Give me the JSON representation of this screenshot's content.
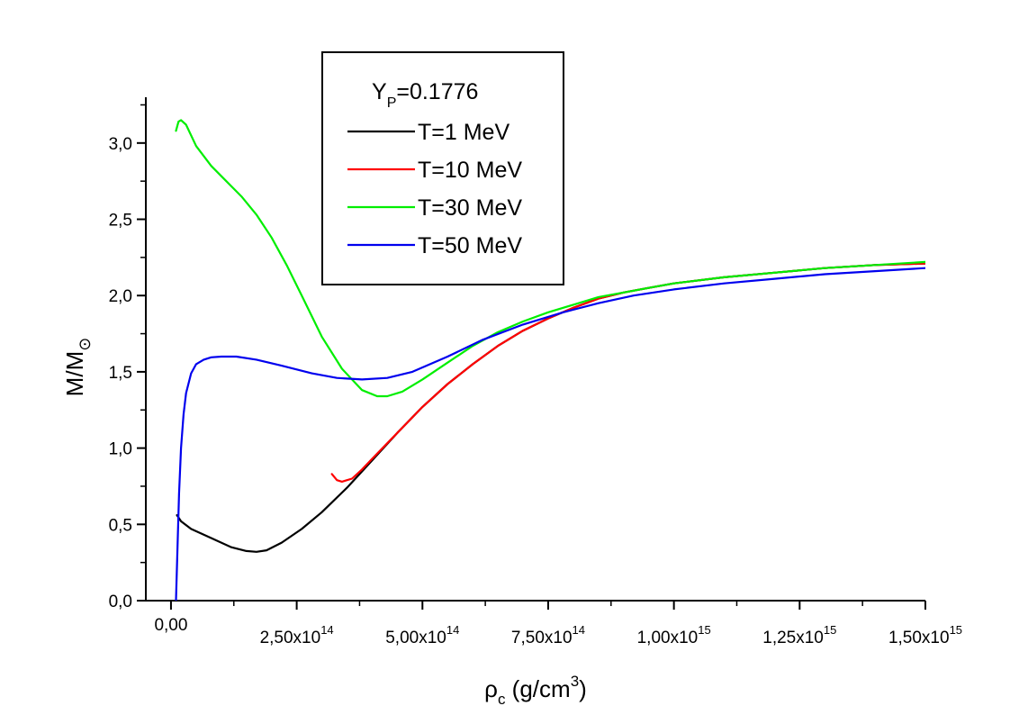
{
  "chart_data": {
    "type": "line",
    "title": "",
    "xlabel": {
      "main": "ρ",
      "sub": "c",
      "unit_prefix": " (g/cm",
      "sup": "3",
      "unit_suffix": ")"
    },
    "ylabel": {
      "main": "M/M",
      "sub": "⊙"
    },
    "xlim": [
      -50000000000000.0,
      1500000000000000.0
    ],
    "ylim": [
      0,
      3.3
    ],
    "x_ticks": [
      {
        "value": 0,
        "mantissa": "0,00",
        "exponent": ""
      },
      {
        "value": 250000000000000.0,
        "mantissa": "2,50x10",
        "exponent": "14"
      },
      {
        "value": 500000000000000.0,
        "mantissa": "5,00x10",
        "exponent": "14"
      },
      {
        "value": 750000000000000.0,
        "mantissa": "7,50x10",
        "exponent": "14"
      },
      {
        "value": 1000000000000000.0,
        "mantissa": "1,00x10",
        "exponent": "15"
      },
      {
        "value": 1250000000000000.0,
        "mantissa": "1,25x10",
        "exponent": "15"
      },
      {
        "value": 1500000000000000.0,
        "mantissa": "1,50x10",
        "exponent": "15"
      }
    ],
    "y_ticks": [
      {
        "value": 0.0,
        "label": "0,0"
      },
      {
        "value": 0.5,
        "label": "0,5"
      },
      {
        "value": 1.0,
        "label": "1,0"
      },
      {
        "value": 1.5,
        "label": "1,5"
      },
      {
        "value": 2.0,
        "label": "2,0"
      },
      {
        "value": 2.5,
        "label": "2,5"
      },
      {
        "value": 3.0,
        "label": "3,0"
      }
    ],
    "legend": {
      "placement": "top-center",
      "title": {
        "main": "Y",
        "sub": "P",
        "suffix": "=0.1776"
      }
    },
    "series": [
      {
        "name": "T=1 MeV",
        "color": "#000000",
        "x": [
          12000000000000.0,
          20000000000000.0,
          40000000000000.0,
          80000000000000.0,
          120000000000000.0,
          150000000000000.0,
          170000000000000.0,
          190000000000000.0,
          220000000000000.0,
          260000000000000.0,
          300000000000000.0,
          350000000000000.0,
          400000000000000.0,
          450000000000000.0,
          500000000000000.0,
          550000000000000.0,
          600000000000000.0,
          650000000000000.0,
          700000000000000.0,
          750000000000000.0,
          800000000000000.0,
          850000000000000.0,
          900000000000000.0,
          950000000000000.0,
          1000000000000000.0,
          1100000000000000.0,
          1200000000000000.0,
          1300000000000000.0,
          1400000000000000.0,
          1500000000000000.0
        ],
        "y": [
          0.56,
          0.52,
          0.47,
          0.41,
          0.35,
          0.325,
          0.32,
          0.33,
          0.38,
          0.47,
          0.58,
          0.74,
          0.92,
          1.1,
          1.27,
          1.42,
          1.55,
          1.67,
          1.77,
          1.85,
          1.92,
          1.98,
          2.02,
          2.05,
          2.08,
          2.12,
          2.15,
          2.18,
          2.2,
          2.21
        ]
      },
      {
        "name": "T=10 MeV",
        "color": "#ff0000",
        "x": [
          320000000000000.0,
          330000000000000.0,
          340000000000000.0,
          360000000000000.0,
          380000000000000.0,
          400000000000000.0,
          450000000000000.0,
          500000000000000.0,
          550000000000000.0,
          600000000000000.0,
          650000000000000.0,
          700000000000000.0,
          750000000000000.0,
          800000000000000.0,
          850000000000000.0,
          900000000000000.0,
          950000000000000.0,
          1000000000000000.0,
          1100000000000000.0,
          1200000000000000.0,
          1300000000000000.0,
          1400000000000000.0,
          1500000000000000.0
        ],
        "y": [
          0.83,
          0.79,
          0.78,
          0.8,
          0.86,
          0.93,
          1.1,
          1.27,
          1.42,
          1.55,
          1.67,
          1.77,
          1.85,
          1.92,
          1.98,
          2.02,
          2.05,
          2.08,
          2.12,
          2.15,
          2.18,
          2.2,
          2.21
        ]
      },
      {
        "name": "T=30 MeV",
        "color": "#00ee00",
        "x": [
          10000000000000.0,
          15000000000000.0,
          20000000000000.0,
          30000000000000.0,
          50000000000000.0,
          80000000000000.0,
          110000000000000.0,
          140000000000000.0,
          170000000000000.0,
          200000000000000.0,
          230000000000000.0,
          260000000000000.0,
          300000000000000.0,
          340000000000000.0,
          380000000000000.0,
          410000000000000.0,
          430000000000000.0,
          460000000000000.0,
          500000000000000.0,
          550000000000000.0,
          600000000000000.0,
          650000000000000.0,
          700000000000000.0,
          750000000000000.0,
          800000000000000.0,
          850000000000000.0,
          900000000000000.0,
          950000000000000.0,
          1000000000000000.0,
          1100000000000000.0,
          1200000000000000.0,
          1300000000000000.0,
          1400000000000000.0,
          1500000000000000.0
        ],
        "y": [
          3.08,
          3.14,
          3.15,
          3.12,
          2.98,
          2.85,
          2.75,
          2.65,
          2.53,
          2.38,
          2.2,
          2.0,
          1.73,
          1.52,
          1.38,
          1.34,
          1.34,
          1.37,
          1.45,
          1.56,
          1.67,
          1.76,
          1.83,
          1.89,
          1.94,
          1.99,
          2.02,
          2.05,
          2.08,
          2.12,
          2.15,
          2.18,
          2.2,
          2.22
        ]
      },
      {
        "name": "T=50 MeV",
        "color": "#0000ee",
        "x": [
          10000000000000.0,
          13000000000000.0,
          16000000000000.0,
          20000000000000.0,
          25000000000000.0,
          30000000000000.0,
          40000000000000.0,
          50000000000000.0,
          65000000000000.0,
          80000000000000.0,
          100000000000000.0,
          130000000000000.0,
          170000000000000.0,
          220000000000000.0,
          280000000000000.0,
          330000000000000.0,
          380000000000000.0,
          430000000000000.0,
          480000000000000.0,
          550000000000000.0,
          620000000000000.0,
          700000000000000.0,
          780000000000000.0,
          850000000000000.0,
          920000000000000.0,
          1000000000000000.0,
          1100000000000000.0,
          1200000000000000.0,
          1300000000000000.0,
          1400000000000000.0,
          1500000000000000.0
        ],
        "y": [
          0.0,
          0.35,
          0.7,
          1.0,
          1.22,
          1.36,
          1.49,
          1.55,
          1.58,
          1.595,
          1.6,
          1.6,
          1.58,
          1.54,
          1.49,
          1.46,
          1.45,
          1.46,
          1.5,
          1.6,
          1.71,
          1.81,
          1.89,
          1.95,
          2.0,
          2.04,
          2.08,
          2.11,
          2.14,
          2.16,
          2.18
        ]
      }
    ]
  }
}
